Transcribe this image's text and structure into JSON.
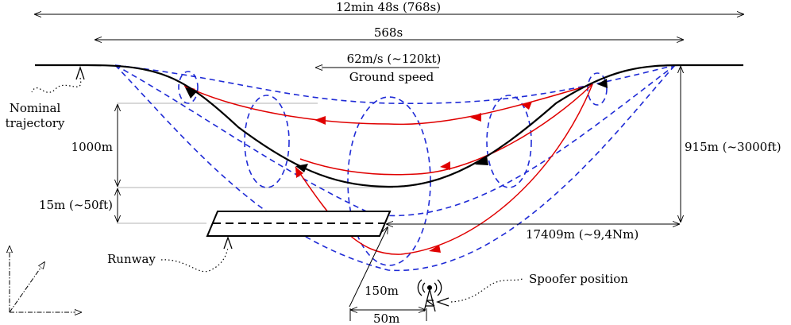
{
  "labels": {
    "total_time": "12min 48s (768s)",
    "segment_time": "568s",
    "speed": "62m/s (~120kt)",
    "speed_caption": "Ground speed",
    "nominal_1": "Nominal",
    "nominal_2": "trajectory",
    "altitude_top": "915m (~3000ft)",
    "altitude_1000": "1000m",
    "altitude_15": "15m (~50ft)",
    "distance": "17409m (~9,4Nm)",
    "runway": "Runway",
    "spoofer": "Spoofer position",
    "offset_150": "150m",
    "offset_50": "50m"
  },
  "colors": {
    "nominal": "#000000",
    "spoofed": "#e00000",
    "envelope": "#1f2bd6",
    "guide": "#b3b3b3"
  },
  "icons": [
    "antenna-tower-icon",
    "axis-triad-icon"
  ]
}
